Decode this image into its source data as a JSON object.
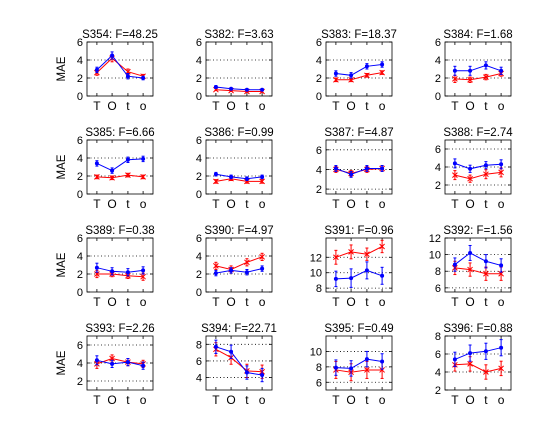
{
  "colors": {
    "series_blue": "#0000ff",
    "series_red": "#ff0000",
    "axes": "#000000",
    "grid": "#000000"
  },
  "markers": {
    "series_blue": "dot",
    "series_red": "x-cross"
  },
  "chart_data": [
    {
      "type": "line",
      "title": "S354: F=48.25",
      "ylabel": "MAE",
      "categories": [
        "T",
        "O",
        "t",
        "o"
      ],
      "ylim": [
        0,
        6
      ],
      "yticks": [
        0,
        2,
        4,
        6
      ],
      "grid": "y-dotted",
      "series": [
        {
          "values": [
            2.9,
            4.5,
            2.2,
            2.0
          ],
          "error": [
            0.3,
            0.4,
            0.3,
            0.2
          ]
        },
        {
          "values": [
            2.6,
            4.2,
            2.7,
            2.2
          ],
          "error": [
            0.3,
            0.4,
            0.3,
            0.2
          ]
        }
      ]
    },
    {
      "type": "line",
      "title": "S382: F=3.63",
      "ylabel": "",
      "categories": [
        "T",
        "O",
        "t",
        "o"
      ],
      "ylim": [
        0,
        6
      ],
      "yticks": [
        0,
        2,
        4,
        6
      ],
      "grid": "y-dotted",
      "series": [
        {
          "values": [
            1.0,
            0.8,
            0.7,
            0.7
          ],
          "error": [
            0.15,
            0.1,
            0.1,
            0.1
          ]
        },
        {
          "values": [
            0.7,
            0.6,
            0.5,
            0.5
          ],
          "error": [
            0.1,
            0.1,
            0.1,
            0.1
          ]
        }
      ]
    },
    {
      "type": "line",
      "title": "S383: F=18.37",
      "ylabel": "",
      "categories": [
        "T",
        "O",
        "t",
        "o"
      ],
      "ylim": [
        0,
        6
      ],
      "yticks": [
        0,
        2,
        4,
        6
      ],
      "grid": "y-dotted",
      "series": [
        {
          "values": [
            2.5,
            2.3,
            3.3,
            3.5
          ],
          "error": [
            0.3,
            0.3,
            0.3,
            0.3
          ]
        },
        {
          "values": [
            1.8,
            1.8,
            2.3,
            2.6
          ],
          "error": [
            0.2,
            0.2,
            0.2,
            0.2
          ]
        }
      ]
    },
    {
      "type": "line",
      "title": "S384: F=1.68",
      "ylabel": "",
      "categories": [
        "T",
        "O",
        "t",
        "o"
      ],
      "ylim": [
        0,
        6
      ],
      "yticks": [
        0,
        2,
        4,
        6
      ],
      "grid": "y-dotted",
      "series": [
        {
          "values": [
            2.8,
            2.8,
            3.4,
            2.8
          ],
          "error": [
            0.5,
            0.5,
            0.4,
            0.4
          ]
        },
        {
          "values": [
            1.9,
            1.8,
            2.1,
            2.5
          ],
          "error": [
            0.4,
            0.3,
            0.3,
            0.3
          ]
        }
      ]
    },
    {
      "type": "line",
      "title": "S385: F=6.66",
      "ylabel": "MAE",
      "categories": [
        "T",
        "O",
        "t",
        "o"
      ],
      "ylim": [
        0,
        6
      ],
      "yticks": [
        0,
        2,
        4,
        6
      ],
      "grid": "y-dotted",
      "series": [
        {
          "values": [
            3.4,
            2.6,
            3.8,
            3.9
          ],
          "error": [
            0.3,
            0.3,
            0.3,
            0.3
          ]
        },
        {
          "values": [
            1.9,
            1.8,
            2.1,
            1.9
          ],
          "error": [
            0.2,
            0.2,
            0.2,
            0.2
          ]
        }
      ]
    },
    {
      "type": "line",
      "title": "S386: F=0.99",
      "ylabel": "",
      "categories": [
        "T",
        "O",
        "t",
        "o"
      ],
      "ylim": [
        0,
        6
      ],
      "yticks": [
        0,
        2,
        4,
        6
      ],
      "grid": "y-dotted",
      "series": [
        {
          "values": [
            2.2,
            1.9,
            1.7,
            1.9
          ],
          "error": [
            0.2,
            0.2,
            0.2,
            0.2
          ]
        },
        {
          "values": [
            1.4,
            1.7,
            1.4,
            1.4
          ],
          "error": [
            0.2,
            0.2,
            0.2,
            0.2
          ]
        }
      ]
    },
    {
      "type": "line",
      "title": "S387: F=4.87",
      "ylabel": "",
      "categories": [
        "T",
        "O",
        "t",
        "o"
      ],
      "ylim": [
        1.5,
        7
      ],
      "yticks": [
        2,
        4,
        6
      ],
      "grid": "y-dotted",
      "series": [
        {
          "values": [
            4.1,
            3.5,
            4.1,
            4.1
          ],
          "error": [
            0.3,
            0.3,
            0.3,
            0.3
          ]
        },
        {
          "values": [
            4.0,
            3.6,
            4.0,
            4.1
          ],
          "error": [
            0.3,
            0.3,
            0.3,
            0.3
          ]
        }
      ]
    },
    {
      "type": "line",
      "title": "S388: F=2.74",
      "ylabel": "",
      "categories": [
        "T",
        "O",
        "t",
        "o"
      ],
      "ylim": [
        1,
        7
      ],
      "yticks": [
        2,
        4,
        6
      ],
      "grid": "y-dotted",
      "series": [
        {
          "values": [
            4.4,
            3.8,
            4.2,
            4.3
          ],
          "error": [
            0.5,
            0.4,
            0.4,
            0.5
          ]
        },
        {
          "values": [
            3.1,
            2.7,
            3.2,
            3.4
          ],
          "error": [
            0.5,
            0.4,
            0.5,
            0.5
          ]
        }
      ]
    },
    {
      "type": "line",
      "title": "S389: F=0.38",
      "ylabel": "MAE",
      "categories": [
        "T",
        "O",
        "t",
        "o"
      ],
      "ylim": [
        0,
        6
      ],
      "yticks": [
        0,
        2,
        4,
        6
      ],
      "grid": "y-dotted",
      "series": [
        {
          "values": [
            2.7,
            2.3,
            2.2,
            2.4
          ],
          "error": [
            0.5,
            0.4,
            0.4,
            0.4
          ]
        },
        {
          "values": [
            2.0,
            2.0,
            1.8,
            1.7
          ],
          "error": [
            0.4,
            0.3,
            0.3,
            0.4
          ]
        }
      ]
    },
    {
      "type": "line",
      "title": "S390: F=4.97",
      "ylabel": "",
      "categories": [
        "T",
        "O",
        "t",
        "o"
      ],
      "ylim": [
        0,
        6
      ],
      "yticks": [
        0,
        2,
        4,
        6
      ],
      "grid": "y-dotted",
      "series": [
        {
          "values": [
            2.1,
            2.4,
            2.2,
            2.6
          ],
          "error": [
            0.3,
            0.3,
            0.3,
            0.3
          ]
        },
        {
          "values": [
            2.9,
            2.5,
            3.3,
            3.9
          ],
          "error": [
            0.4,
            0.4,
            0.4,
            0.4
          ]
        }
      ]
    },
    {
      "type": "line",
      "title": "S391: F=0.96",
      "ylabel": "",
      "categories": [
        "T",
        "O",
        "t",
        "o"
      ],
      "ylim": [
        7.5,
        14.5
      ],
      "yticks": [
        8,
        10,
        12
      ],
      "grid": "y-dotted",
      "series": [
        {
          "values": [
            9.2,
            9.3,
            10.3,
            9.6
          ],
          "error": [
            1.0,
            1.2,
            1.1,
            1.1
          ]
        },
        {
          "values": [
            12.0,
            12.7,
            12.4,
            13.4
          ],
          "error": [
            0.9,
            0.9,
            0.8,
            0.8
          ]
        }
      ]
    },
    {
      "type": "line",
      "title": "S392: F=1.56",
      "ylabel": "",
      "categories": [
        "T",
        "O",
        "t",
        "o"
      ],
      "ylim": [
        5.5,
        12
      ],
      "yticks": [
        6,
        8,
        10,
        12
      ],
      "grid": "y-dotted",
      "series": [
        {
          "values": [
            8.8,
            10.2,
            9.2,
            8.7
          ],
          "error": [
            0.8,
            0.9,
            0.8,
            0.8
          ]
        },
        {
          "values": [
            8.4,
            8.2,
            7.7,
            7.7
          ],
          "error": [
            0.8,
            0.8,
            0.8,
            0.8
          ]
        }
      ]
    },
    {
      "type": "line",
      "title": "S393: F=2.26",
      "ylabel": "MAE",
      "categories": [
        "T",
        "O",
        "t",
        "o"
      ],
      "ylim": [
        1,
        7
      ],
      "yticks": [
        2,
        4,
        6
      ],
      "grid": "y-dotted",
      "series": [
        {
          "values": [
            4.3,
            3.9,
            4.1,
            3.7
          ],
          "error": [
            0.5,
            0.4,
            0.4,
            0.4
          ]
        },
        {
          "values": [
            3.9,
            4.5,
            4.1,
            3.9
          ],
          "error": [
            0.5,
            0.4,
            0.4,
            0.4
          ]
        }
      ]
    },
    {
      "type": "line",
      "title": "S394: F=22.71",
      "ylabel": "",
      "categories": [
        "T",
        "O",
        "t",
        "o"
      ],
      "ylim": [
        2.5,
        9
      ],
      "yticks": [
        4,
        6,
        8
      ],
      "grid": "y-dotted",
      "series": [
        {
          "values": [
            7.7,
            7.1,
            4.6,
            4.3
          ],
          "error": [
            0.8,
            0.8,
            0.8,
            0.8
          ]
        },
        {
          "values": [
            7.4,
            6.4,
            4.8,
            4.7
          ],
          "error": [
            0.8,
            0.8,
            0.8,
            0.8
          ]
        }
      ]
    },
    {
      "type": "line",
      "title": "S395: F=0.49",
      "ylabel": "",
      "categories": [
        "T",
        "O",
        "t",
        "o"
      ],
      "ylim": [
        5,
        12
      ],
      "yticks": [
        6,
        8,
        10
      ],
      "grid": "y-dotted",
      "series": [
        {
          "values": [
            7.9,
            7.8,
            9.0,
            8.7
          ],
          "error": [
            1.0,
            1.0,
            1.0,
            1.0
          ]
        },
        {
          "values": [
            7.6,
            7.3,
            7.6,
            7.6
          ],
          "error": [
            1.1,
            1.1,
            1.1,
            1.1
          ]
        }
      ]
    },
    {
      "type": "line",
      "title": "S396: F=0.88",
      "ylabel": "",
      "categories": [
        "T",
        "O",
        "t",
        "o"
      ],
      "ylim": [
        2,
        8
      ],
      "yticks": [
        2,
        4,
        6,
        8
      ],
      "grid": "y-dotted",
      "series": [
        {
          "values": [
            5.4,
            6.1,
            6.3,
            6.7
          ],
          "error": [
            0.8,
            0.9,
            0.9,
            0.9
          ]
        },
        {
          "values": [
            4.8,
            4.9,
            4.0,
            4.4
          ],
          "error": [
            0.7,
            0.8,
            0.8,
            0.8
          ]
        }
      ]
    }
  ]
}
